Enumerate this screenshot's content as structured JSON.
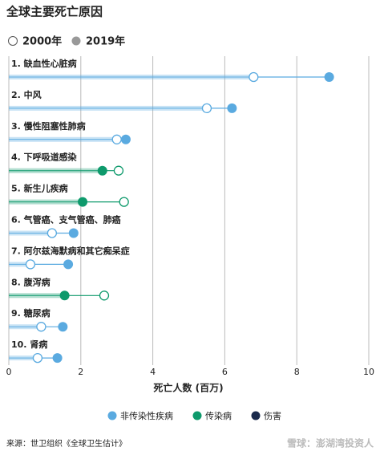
{
  "chart_data": {
    "type": "dumbbell",
    "title": "全球主要死亡原因",
    "x_label": "死亡人数 (百万)",
    "source": "来源：世卫组织《全球卫生估计》",
    "watermark": "雪球：澎湖湾投资人",
    "categories": [
      "1. 缺血性心脏病",
      "2. 中风",
      "3. 慢性阻塞性肺病",
      "4. 下呼吸道感染",
      "5. 新生儿疾病",
      "6. 气管癌、支气管癌、肺癌",
      "7. 阿尔兹海默病和其它痴呆症",
      "8. 腹泻病",
      "9. 糖尿病",
      "10. 肾病"
    ],
    "series": [
      {
        "name": "2000年",
        "color": "#ffffff",
        "values": [
          6.8,
          5.5,
          3.0,
          3.05,
          3.2,
          1.2,
          0.6,
          2.65,
          0.9,
          0.8
        ]
      },
      {
        "name": "2019年",
        "color": "#999999",
        "values": [
          8.9,
          6.2,
          3.25,
          2.6,
          2.05,
          1.8,
          1.65,
          1.55,
          1.5,
          1.35
        ]
      }
    ],
    "groups": [
      {
        "name": "非传染性疾病",
        "color": "#5aaae0"
      },
      {
        "name": "传染病",
        "color": "#0e9a6c"
      },
      {
        "name": "伤害",
        "color": "#1a2a4c"
      }
    ],
    "category_group": [
      0,
      0,
      0,
      1,
      1,
      0,
      0,
      1,
      0,
      0
    ],
    "xlim": [
      0,
      10
    ],
    "xticks": [
      0,
      2,
      4,
      6,
      8,
      10
    ],
    "grid": true
  }
}
